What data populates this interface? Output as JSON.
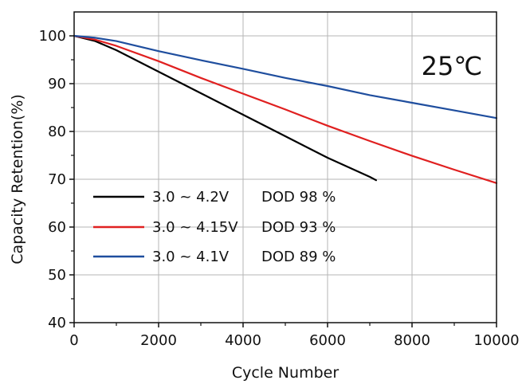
{
  "chart_data": {
    "type": "line",
    "xlabel": "Cycle Number",
    "ylabel": "Capacity Retention(%)",
    "xlim": [
      0,
      10000
    ],
    "ylim": [
      40,
      105
    ],
    "x_ticks": [
      0,
      2000,
      4000,
      6000,
      8000,
      10000
    ],
    "y_ticks": [
      40,
      50,
      60,
      70,
      80,
      90,
      100
    ],
    "x_tick_labels": [
      "0",
      "2000",
      "4000",
      "6000",
      "8000",
      "10000"
    ],
    "y_tick_labels": [
      "40",
      "50",
      "60",
      "70",
      "80",
      "90",
      "100"
    ],
    "grid": true,
    "annotation": "25℃",
    "legend": {
      "placement": "lower-left",
      "entries": [
        {
          "range": "3.0 ~ 4.2V",
          "dod": "DOD 98 %"
        },
        {
          "range": "3.0 ~ 4.15V",
          "dod": "DOD 93 %"
        },
        {
          "range": "3.0 ~ 4.1V",
          "dod": "DOD 89 %"
        }
      ]
    },
    "series": [
      {
        "name": "3.0 ~ 4.2V DOD 98 %",
        "color": "#000000",
        "x": [
          0,
          500,
          1000,
          2000,
          3000,
          4000,
          5000,
          6000,
          7000,
          7150
        ],
        "y": [
          100,
          98.9,
          97.0,
          92.5,
          88.0,
          83.5,
          79.0,
          74.5,
          70.5,
          69.8
        ]
      },
      {
        "name": "3.0 ~ 4.15V DOD 93 %",
        "color": "#e02020",
        "x": [
          0,
          500,
          1000,
          2000,
          3000,
          4000,
          5000,
          6000,
          7000,
          8000,
          9000,
          10000
        ],
        "y": [
          100,
          99.2,
          97.9,
          94.7,
          91.2,
          87.9,
          84.6,
          81.2,
          78.0,
          74.9,
          72.0,
          69.2
        ]
      },
      {
        "name": "3.0 ~ 4.1V DOD 89 %",
        "color": "#1f4e9e",
        "x": [
          0,
          500,
          1000,
          2000,
          3000,
          4000,
          5000,
          6000,
          7000,
          8000,
          9000,
          10000
        ],
        "y": [
          100,
          99.6,
          98.9,
          96.8,
          94.9,
          93.1,
          91.2,
          89.5,
          87.6,
          86.0,
          84.4,
          82.8
        ]
      }
    ]
  }
}
